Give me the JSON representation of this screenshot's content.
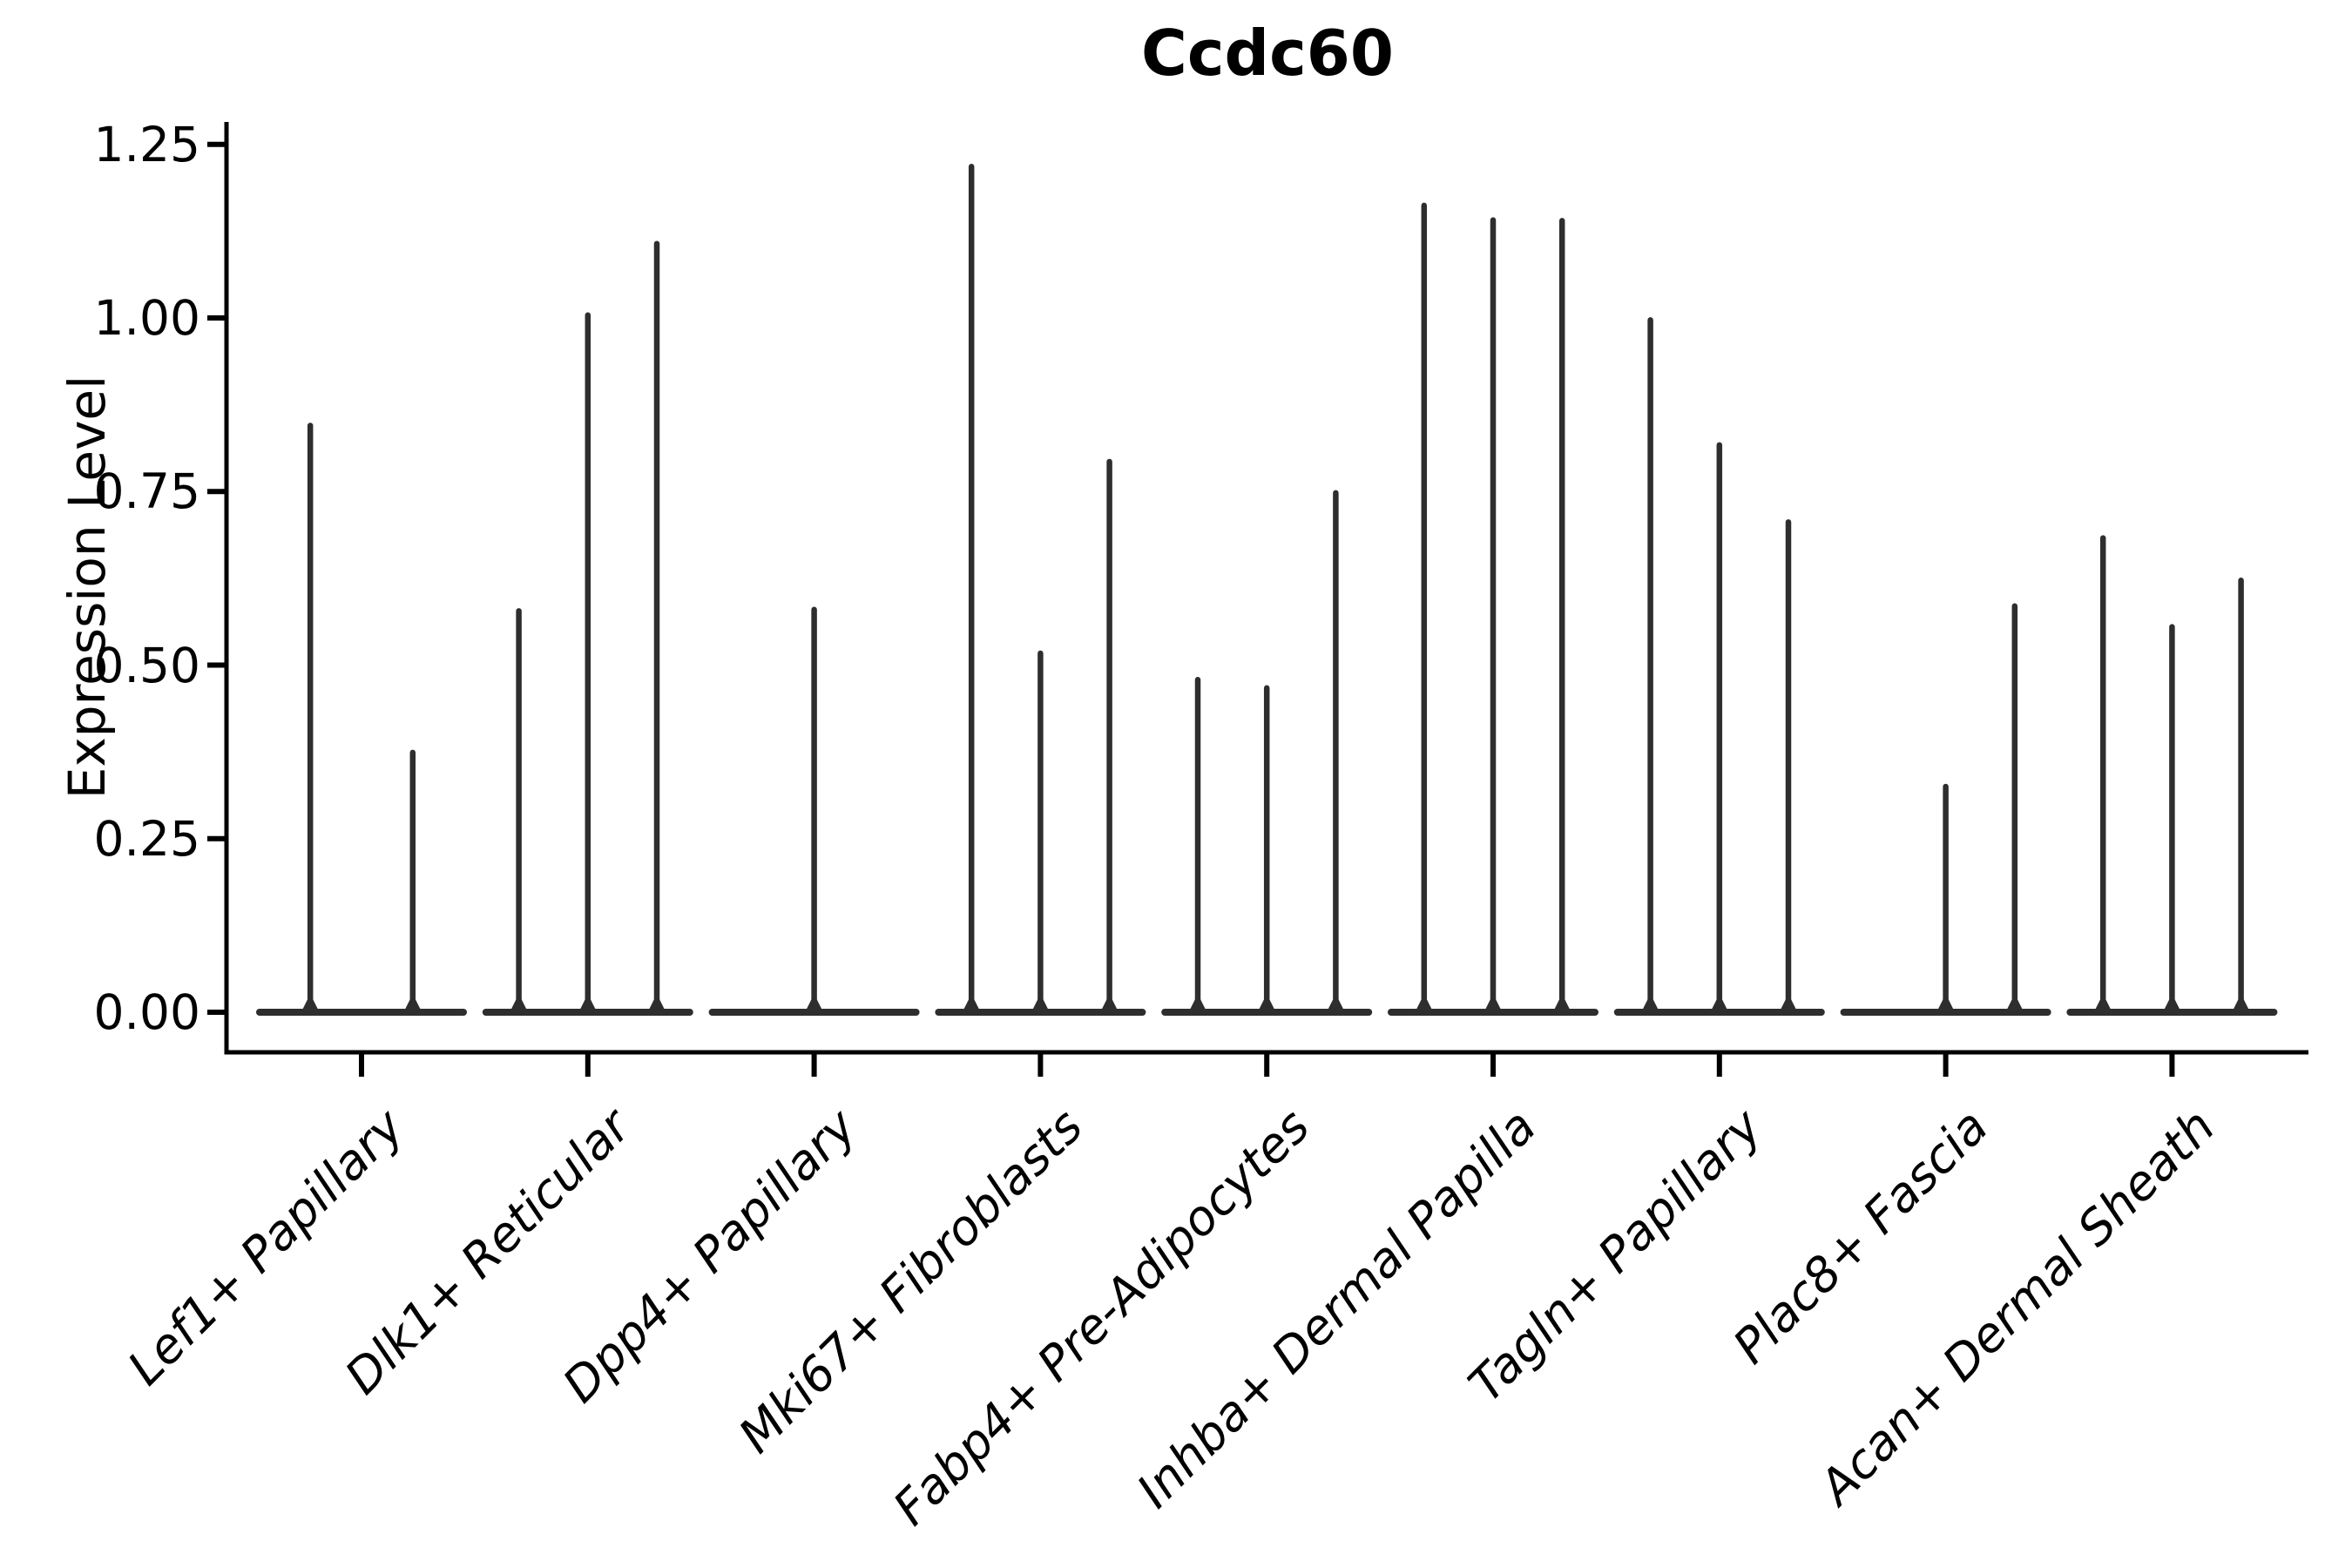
{
  "chart_data": {
    "type": "violin",
    "title": "Ccdc60",
    "xlabel": "",
    "ylabel": "Expression Level",
    "y_ticks": [
      0.0,
      0.25,
      0.5,
      0.75,
      1.0,
      1.25
    ],
    "y_tick_labels": [
      "0.00",
      "0.25",
      "0.50",
      "0.75",
      "1.00",
      "1.25"
    ],
    "ylim": [
      -0.058,
      1.282
    ],
    "grid": false,
    "legend": "none",
    "description": "Thin collapsed violins: each category shows a flat density base at 0 with narrow vertical spikes reaching the max expression of each sub-violin.",
    "categories": [
      "Lef1+ Papillary",
      "Dlk1+ Reticular",
      "Dpp4+ Papillary",
      "Mki67+ Fibroblasts",
      "Fabp4+ Pre-Adipocytes",
      "Inhba+ Dermal Papilla",
      "Tagln+ Papillary",
      "Plac8+ Fascia",
      "Acan+ Dermal Sheath"
    ],
    "groups": [
      {
        "label": "Lef1+ Papillary",
        "spike_heights": [
          0.845,
          0.374
        ]
      },
      {
        "label": "Dlk1+ Reticular",
        "spike_heights": [
          0.578,
          1.004,
          1.107
        ]
      },
      {
        "label": "Dpp4+ Papillary",
        "spike_heights": [
          0.58
        ]
      },
      {
        "label": "Mki67+ Fibroblasts",
        "spike_heights": [
          1.218,
          0.517,
          0.793
        ]
      },
      {
        "label": "Fabp4+ Pre-Adipocytes",
        "spike_heights": [
          0.479,
          0.467,
          0.748
        ]
      },
      {
        "label": "Inhba+ Dermal Papilla",
        "spike_heights": [
          1.162,
          1.141,
          1.14
        ]
      },
      {
        "label": "Tagln+ Papillary",
        "spike_heights": [
          0.997,
          0.817,
          0.706
        ]
      },
      {
        "label": "Plac8+ Fascia",
        "spike_heights": [
          0.0,
          0.325,
          0.585
        ]
      },
      {
        "label": "Acan+ Dermal Sheath",
        "spike_heights": [
          0.683,
          0.555,
          0.622
        ]
      }
    ],
    "style": {
      "violin_color": "#2e2e2e",
      "axis_color": "#000000",
      "background": "#ffffff"
    }
  }
}
